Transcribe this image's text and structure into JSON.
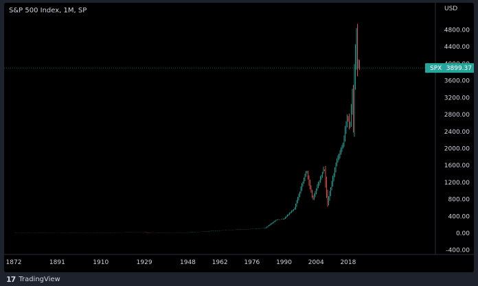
{
  "chart": {
    "title": "S&P 500 Index, 1M, SP",
    "currency": "USD",
    "price_tag": {
      "symbol": "SPX",
      "value": "3899.37",
      "value_num": 3899.37,
      "color": "#26a69a"
    },
    "brand": {
      "logo": "17",
      "name": "TradingView"
    },
    "colors": {
      "up": "#26a69a",
      "down": "#ef5350",
      "background": "#000000",
      "axis_text": "#d1d4dc"
    }
  },
  "chart_data": {
    "type": "line",
    "title": "S&P 500 Index, 1M, SP",
    "xlabel": "",
    "ylabel": "USD",
    "x_ticks": [
      "1872",
      "1891",
      "1910",
      "1929",
      "1948",
      "1962",
      "1976",
      "1990",
      "2004",
      "2018"
    ],
    "y_ticks": [
      "4800.00",
      "4400.00",
      "4000.00",
      "3600.00",
      "3200.00",
      "2800.00",
      "2400.00",
      "2000.00",
      "1600.00",
      "1200.00",
      "800.00",
      "400.00",
      "0.00",
      "-400.00"
    ],
    "ylim": [
      -400,
      4800
    ],
    "xlim": [
      1872,
      2024
    ],
    "grid": false,
    "series": [
      {
        "x": [
          1872,
          1891,
          1910,
          1929,
          1932,
          1948,
          1962,
          1976,
          1982,
          1987,
          1990,
          1995,
          2000,
          2002.8,
          2007.8,
          2009.2,
          2013,
          2016,
          2018.0,
          2018.9,
          2020.2,
          2020.3,
          2021.0,
          2022.0,
          2022.4,
          2022.8,
          2023.1
        ],
        "values": [
          4,
          4,
          9,
          24,
          5,
          15,
          63,
          100,
          120,
          320,
          330,
          600,
          1480,
          800,
          1550,
          700,
          1650,
          2100,
          2800,
          2450,
          3380,
          2240,
          3700,
          4780,
          3700,
          4050,
          3899.37
        ]
      }
    ]
  }
}
